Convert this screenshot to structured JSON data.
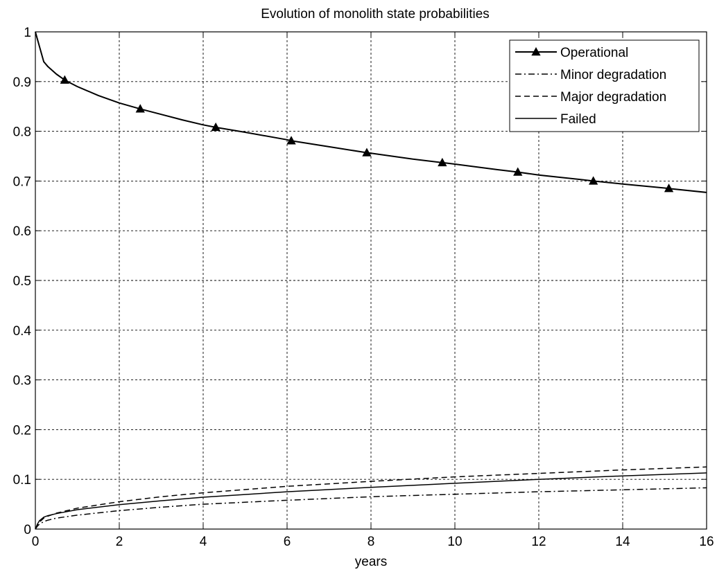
{
  "chart_data": {
    "type": "line",
    "title": "Evolution of monolith state probabilities",
    "xlabel": "years",
    "ylabel": "",
    "xlim": [
      0,
      16
    ],
    "ylim": [
      0,
      1
    ],
    "x_ticks": [
      0,
      2,
      4,
      6,
      8,
      10,
      12,
      14,
      16
    ],
    "y_ticks": [
      0,
      0.1,
      0.2,
      0.3,
      0.4,
      0.5,
      0.6,
      0.7,
      0.8,
      0.9,
      1
    ],
    "grid": true,
    "legend_position": "top-right",
    "series": [
      {
        "name": "Operational",
        "style": "solid-triangle-markers",
        "x": [
          0,
          0.05,
          0.1,
          0.2,
          0.3,
          0.5,
          0.7,
          1,
          1.5,
          2,
          2.5,
          3,
          3.5,
          4,
          4.3,
          5,
          6,
          6.1,
          7,
          7.9,
          8,
          9,
          9.7,
          10,
          11,
          11.5,
          12,
          13,
          13.3,
          14,
          15,
          15.1,
          16
        ],
        "y": [
          1.0,
          0.985,
          0.97,
          0.94,
          0.93,
          0.915,
          0.903,
          0.89,
          0.872,
          0.857,
          0.845,
          0.834,
          0.823,
          0.813,
          0.808,
          0.798,
          0.783,
          0.781,
          0.769,
          0.757,
          0.756,
          0.744,
          0.737,
          0.734,
          0.723,
          0.718,
          0.712,
          0.703,
          0.7,
          0.694,
          0.686,
          0.685,
          0.677
        ],
        "markers_x": [
          0.7,
          2.5,
          4.3,
          6.1,
          7.9,
          9.7,
          11.5,
          13.3,
          15.1
        ]
      },
      {
        "name": "Minor degradation",
        "style": "dash-dot",
        "x": [
          0,
          0.05,
          0.1,
          0.2,
          0.3,
          0.5,
          1,
          2,
          3,
          4,
          6,
          8,
          10,
          12,
          14,
          16
        ],
        "y": [
          0,
          0.006,
          0.01,
          0.015,
          0.018,
          0.022,
          0.028,
          0.037,
          0.044,
          0.05,
          0.058,
          0.065,
          0.07,
          0.075,
          0.079,
          0.083
        ]
      },
      {
        "name": "Major degradation",
        "style": "dashed",
        "x": [
          0,
          0.05,
          0.1,
          0.2,
          0.3,
          0.5,
          1,
          2,
          3,
          4,
          6,
          8,
          10,
          12,
          14,
          16
        ],
        "y": [
          0,
          0.008,
          0.014,
          0.022,
          0.026,
          0.032,
          0.042,
          0.055,
          0.065,
          0.073,
          0.086,
          0.096,
          0.105,
          0.112,
          0.119,
          0.125
        ]
      },
      {
        "name": "Failed",
        "style": "solid",
        "x": [
          0,
          0.05,
          0.1,
          0.2,
          0.3,
          0.5,
          1,
          2,
          3,
          4,
          6,
          8,
          10,
          12,
          14,
          16
        ],
        "y": [
          0,
          0.01,
          0.017,
          0.024,
          0.027,
          0.031,
          0.039,
          0.049,
          0.057,
          0.064,
          0.075,
          0.084,
          0.092,
          0.1,
          0.107,
          0.113
        ]
      }
    ]
  }
}
